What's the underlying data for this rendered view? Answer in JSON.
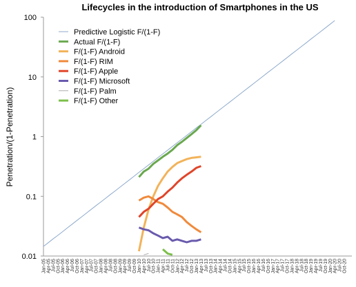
{
  "chart_data": {
    "type": "line",
    "title": "Lifecycles in the introduction of Smartphones in the US",
    "y_label": "Penetration/(1-Penetration)",
    "log_y": true,
    "grid": false,
    "legend": "upper-left",
    "ylim": [
      0.01,
      100
    ],
    "yticks": [
      0.01,
      0.1,
      1,
      10,
      100
    ],
    "categories": [
      "Jan-05",
      "Apr-05",
      "Jul-05",
      "Oct-05",
      "Jan-06",
      "Apr-06",
      "Jul-06",
      "Oct-06",
      "Jan-07",
      "Apr-07",
      "Jul-07",
      "Oct-07",
      "Jan-08",
      "Apr-08",
      "Jul-08",
      "Oct-08",
      "Jan-09",
      "Apr-09",
      "Jul-09",
      "Oct-09",
      "Jan-10",
      "Apr-10",
      "Jul-10",
      "Oct-10",
      "Jan-11",
      "Apr-11",
      "Jul-11",
      "Oct-11",
      "Jan-12",
      "Apr-12",
      "Jul-12",
      "Oct-12",
      "Jan-13",
      "Apr-13",
      "Jul-13",
      "Oct-13",
      "Jan-14",
      "Apr-14",
      "Jul-14",
      "Oct-14",
      "Jan-15",
      "Apr-15",
      "Jul-15",
      "Oct-15",
      "Jan-16",
      "Apr-16",
      "Jul-16",
      "Oct-16",
      "Jan-17",
      "Apr-17",
      "Jul-17",
      "Oct-17",
      "Jan-18",
      "Apr-18",
      "Jul-18",
      "Oct-18",
      "Jan-19",
      "Apr-19",
      "Jul-19",
      "Oct-19",
      "Jan-20",
      "Apr-20",
      "Jul-20",
      "Oct-20"
    ],
    "series": [
      {
        "name": "Predictive Logistic F/(1-F)",
        "color": "#8eaacc",
        "width": 1,
        "values": [
          0.0145,
          0.0167,
          0.0193,
          0.0222,
          0.0256,
          0.0296,
          0.0341,
          0.0394,
          0.0454,
          0.0524,
          0.0604,
          0.0697,
          0.0804,
          0.0927,
          0.107,
          0.123,
          0.142,
          0.164,
          0.189,
          0.218,
          0.252,
          0.29,
          0.335,
          0.386,
          0.446,
          0.514,
          0.593,
          0.684,
          0.789,
          0.91,
          1.05,
          1.21,
          1.4,
          1.61,
          1.86,
          2.14,
          2.47,
          2.85,
          3.29,
          3.79,
          4.38,
          5.05,
          5.82,
          6.71,
          7.74,
          8.93,
          10.3,
          11.9,
          13.7,
          15.8,
          18.2,
          21.0,
          24.3,
          28.0,
          32.3,
          37.2,
          43.0,
          49.5,
          57.1,
          65.9,
          76.0,
          87.7,
          null,
          null
        ]
      },
      {
        "name": "Actual F/(1-F)",
        "color": "#6aa84f",
        "width": 3,
        "values": [
          null,
          null,
          null,
          null,
          null,
          null,
          null,
          null,
          null,
          null,
          null,
          null,
          null,
          null,
          null,
          null,
          null,
          null,
          null,
          null,
          0.21,
          0.26,
          0.29,
          0.35,
          0.4,
          0.46,
          0.52,
          0.6,
          0.72,
          0.82,
          0.95,
          1.1,
          1.28,
          1.55,
          null,
          null,
          null,
          null,
          null,
          null,
          null,
          null,
          null,
          null,
          null,
          null,
          null,
          null,
          null,
          null,
          null,
          null,
          null,
          null,
          null,
          null,
          null,
          null,
          null,
          null,
          null,
          null,
          null,
          null
        ]
      },
      {
        "name": "F/(1-F) Android",
        "color": "#f2b35a",
        "width": 3,
        "values": [
          null,
          null,
          null,
          null,
          null,
          null,
          null,
          null,
          null,
          null,
          null,
          null,
          null,
          null,
          null,
          null,
          null,
          null,
          null,
          null,
          0.012,
          0.03,
          0.06,
          0.1,
          0.15,
          0.2,
          0.26,
          0.31,
          0.36,
          0.39,
          0.42,
          0.44,
          0.45,
          0.46,
          null,
          null,
          null,
          null,
          null,
          null,
          null,
          null,
          null,
          null,
          null,
          null,
          null,
          null,
          null,
          null,
          null,
          null,
          null,
          null,
          null,
          null,
          null,
          null,
          null,
          null,
          null,
          null,
          null,
          null
        ]
      },
      {
        "name": "F/(1-F) RIM",
        "color": "#f08a3c",
        "width": 3,
        "values": [
          null,
          null,
          null,
          null,
          null,
          null,
          null,
          null,
          null,
          null,
          null,
          null,
          null,
          null,
          null,
          null,
          null,
          null,
          null,
          null,
          0.085,
          0.095,
          0.1,
          0.09,
          0.08,
          0.075,
          0.065,
          0.055,
          0.05,
          0.045,
          0.037,
          0.032,
          0.028,
          0.025,
          null,
          null,
          null,
          null,
          null,
          null,
          null,
          null,
          null,
          null,
          null,
          null,
          null,
          null,
          null,
          null,
          null,
          null,
          null,
          null,
          null,
          null,
          null,
          null,
          null,
          null,
          null,
          null,
          null,
          null
        ]
      },
      {
        "name": "F/(1-F) Apple",
        "color": "#e0452a",
        "width": 3,
        "values": [
          null,
          null,
          null,
          null,
          null,
          null,
          null,
          null,
          null,
          null,
          null,
          null,
          null,
          null,
          null,
          null,
          null,
          null,
          null,
          null,
          0.045,
          0.055,
          0.062,
          0.075,
          0.09,
          0.1,
          0.12,
          0.14,
          0.17,
          0.2,
          0.23,
          0.26,
          0.3,
          0.32,
          null,
          null,
          null,
          null,
          null,
          null,
          null,
          null,
          null,
          null,
          null,
          null,
          null,
          null,
          null,
          null,
          null,
          null,
          null,
          null,
          null,
          null,
          null,
          null,
          null,
          null,
          null,
          null,
          null,
          null
        ]
      },
      {
        "name": "F/(1-F) Microsoft",
        "color": "#6a5aad",
        "width": 3,
        "values": [
          null,
          null,
          null,
          null,
          null,
          null,
          null,
          null,
          null,
          null,
          null,
          null,
          null,
          null,
          null,
          null,
          null,
          null,
          null,
          null,
          0.03,
          0.028,
          0.027,
          0.024,
          0.022,
          0.02,
          0.021,
          0.018,
          0.019,
          0.018,
          0.017,
          0.018,
          0.018,
          0.019,
          null,
          null,
          null,
          null,
          null,
          null,
          null,
          null,
          null,
          null,
          null,
          null,
          null,
          null,
          null,
          null,
          null,
          null,
          null,
          null,
          null,
          null,
          null,
          null,
          null,
          null,
          null,
          null,
          null,
          null
        ]
      },
      {
        "name": "F/(1-F) Palm",
        "color": "#aaaaaa",
        "width": 1,
        "values": [
          null,
          null,
          null,
          null,
          null,
          null,
          null,
          null,
          null,
          null,
          null,
          null,
          null,
          null,
          null,
          null,
          null,
          null,
          null,
          null,
          null,
          0.0105,
          0.011,
          null,
          null,
          null,
          null,
          null,
          null,
          null,
          null,
          null,
          null,
          null,
          null,
          null,
          null,
          null,
          null,
          null,
          null,
          null,
          null,
          null,
          null,
          null,
          null,
          null,
          null,
          null,
          null,
          null,
          null,
          null,
          null,
          null,
          null,
          null,
          null,
          null,
          null,
          null,
          null,
          null
        ]
      },
      {
        "name": "F/(1-F) Other",
        "color": "#7cbf4a",
        "width": 3,
        "values": [
          null,
          null,
          null,
          null,
          null,
          null,
          null,
          null,
          null,
          null,
          null,
          null,
          null,
          null,
          null,
          null,
          null,
          null,
          null,
          null,
          null,
          null,
          null,
          null,
          null,
          0.013,
          0.011,
          0.0105,
          null,
          null,
          null,
          null,
          null,
          null,
          null,
          null,
          null,
          null,
          null,
          null,
          null,
          null,
          null,
          null,
          null,
          null,
          null,
          null,
          null,
          null,
          null,
          null,
          null,
          null,
          null,
          null,
          null,
          null,
          null,
          null,
          null,
          null,
          null,
          null
        ]
      }
    ]
  }
}
